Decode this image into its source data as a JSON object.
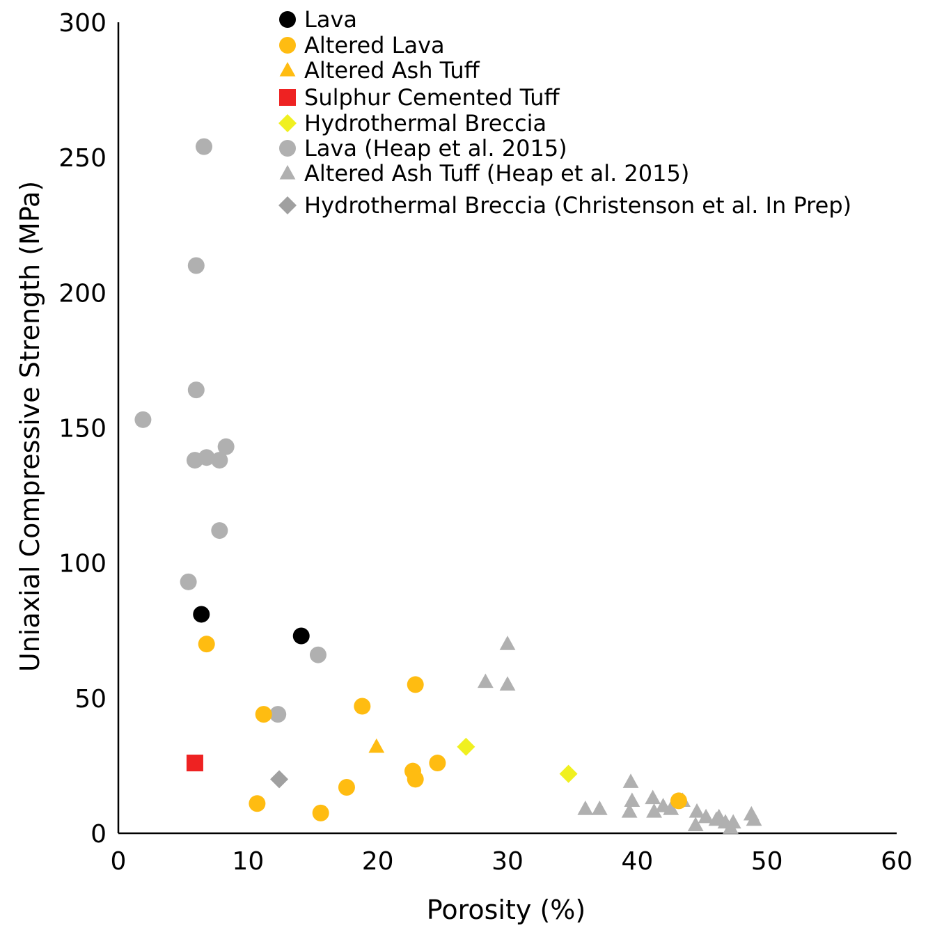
{
  "chart_data": {
    "type": "scatter",
    "title": "",
    "xlabel": "Porosity (%)",
    "ylabel": "Uniaxial Compressive Strength (MPa)",
    "xlim": [
      0,
      60
    ],
    "ylim": [
      0,
      300
    ],
    "xticks": [
      "0",
      "10",
      "20",
      "30",
      "40",
      "50",
      "60"
    ],
    "yticks": [
      "0",
      "50",
      "100",
      "150",
      "200",
      "250",
      "300"
    ],
    "xtick_values": [
      0,
      10,
      20,
      30,
      40,
      50,
      60
    ],
    "ytick_values": [
      0,
      50,
      100,
      150,
      200,
      250,
      300
    ],
    "grid": false,
    "legend_position": "top-right",
    "series": [
      {
        "name": "Lava",
        "marker": "circle",
        "color": "#000000",
        "points": [
          [
            6.4,
            81
          ],
          [
            14.1,
            73
          ]
        ]
      },
      {
        "name": "Altered Lava",
        "marker": "circle",
        "color": "#FFBC11",
        "points": [
          [
            6.8,
            70
          ],
          [
            11.2,
            44
          ],
          [
            10.7,
            11
          ],
          [
            15.6,
            7.5
          ],
          [
            17.6,
            17
          ],
          [
            18.8,
            47
          ],
          [
            22.9,
            55
          ],
          [
            22.7,
            23
          ],
          [
            22.9,
            20
          ],
          [
            24.6,
            26
          ],
          [
            43.2,
            12
          ]
        ]
      },
      {
        "name": "Altered Ash Tuff",
        "marker": "triangle",
        "color": "#FFBC11",
        "points": [
          [
            19.9,
            32
          ]
        ]
      },
      {
        "name": "Sulphur Cemented Tuff",
        "marker": "square",
        "color": "#EE2222",
        "points": [
          [
            5.9,
            26
          ]
        ]
      },
      {
        "name": "Hydrothermal Breccia",
        "marker": "diamond",
        "color": "#F0F020",
        "points": [
          [
            26.8,
            32
          ],
          [
            34.7,
            22
          ]
        ]
      },
      {
        "name": "Lava (Heap et al. 2015)",
        "marker": "circle",
        "color": "#B0B0B0",
        "points": [
          [
            6.6,
            254
          ],
          [
            6.0,
            210
          ],
          [
            6.0,
            164
          ],
          [
            1.9,
            153
          ],
          [
            5.9,
            138
          ],
          [
            6.8,
            139
          ],
          [
            7.8,
            138
          ],
          [
            8.3,
            143
          ],
          [
            7.8,
            112
          ],
          [
            5.4,
            93
          ],
          [
            15.4,
            66
          ],
          [
            12.3,
            44
          ]
        ]
      },
      {
        "name": "Altered Ash Tuff (Heap et al. 2015)",
        "marker": "triangle",
        "color": "#B0B0B0",
        "points": [
          [
            30.0,
            70
          ],
          [
            28.3,
            56
          ],
          [
            30.0,
            55
          ],
          [
            39.5,
            19
          ],
          [
            39.6,
            12
          ],
          [
            39.4,
            8
          ],
          [
            41.2,
            13
          ],
          [
            41.3,
            8
          ],
          [
            42.0,
            10
          ],
          [
            42.6,
            9
          ],
          [
            43.5,
            12
          ],
          [
            36.0,
            9
          ],
          [
            37.1,
            9
          ],
          [
            44.6,
            8
          ],
          [
            45.3,
            6
          ],
          [
            46.3,
            6
          ],
          [
            46.1,
            5
          ],
          [
            46.8,
            4
          ],
          [
            47.4,
            4
          ],
          [
            44.5,
            3
          ],
          [
            47.2,
            2
          ],
          [
            48.8,
            7
          ],
          [
            49.0,
            5
          ]
        ]
      },
      {
        "name": "Hydrothermal Breccia (Christenson et al. In Prep)",
        "marker": "diamond",
        "color": "#A0A0A0",
        "points": [
          [
            12.4,
            20
          ]
        ]
      }
    ]
  }
}
